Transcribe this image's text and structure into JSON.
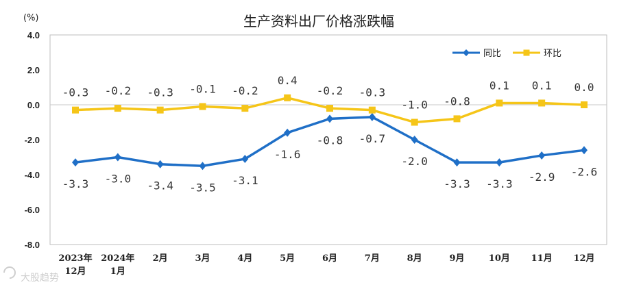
{
  "chart_data": {
    "type": "line",
    "title": "生产资料出厂价格涨跌幅",
    "unit_label": "(%)",
    "categories": [
      [
        "2023年",
        "12月"
      ],
      [
        "2024年",
        "1月"
      ],
      [
        "2月"
      ],
      [
        "3月"
      ],
      [
        "4月"
      ],
      [
        "5月"
      ],
      [
        "6月"
      ],
      [
        "7月"
      ],
      [
        "8月"
      ],
      [
        "9月"
      ],
      [
        "10月"
      ],
      [
        "11月"
      ],
      [
        "12月"
      ]
    ],
    "series": [
      {
        "name": "同比",
        "color": "#1f6fc7",
        "marker": "diamond",
        "values": [
          -3.3,
          -3.0,
          -3.4,
          -3.5,
          -3.1,
          -1.6,
          -0.8,
          -0.7,
          -2.0,
          -3.3,
          -3.3,
          -2.9,
          -2.6
        ],
        "labels": [
          "-3.3",
          "-3.0",
          "-3.4",
          "-3.5",
          "-3.1",
          "-1.6",
          "-0.8",
          "-0.7",
          "-2.0",
          "-3.3",
          "-3.3",
          "-2.9",
          "-2.6"
        ],
        "label_pos": [
          "below",
          "below",
          "below",
          "below",
          "below",
          "below",
          "below",
          "below",
          "below",
          "below",
          "below",
          "below",
          "below"
        ]
      },
      {
        "name": "环比",
        "color": "#f5c518",
        "marker": "square",
        "values": [
          -0.3,
          -0.2,
          -0.3,
          -0.1,
          -0.2,
          0.4,
          -0.2,
          -0.3,
          -1.0,
          -0.8,
          0.1,
          0.1,
          0.0
        ],
        "labels": [
          "-0.3",
          "-0.2",
          "-0.3",
          "-0.1",
          "-0.2",
          "0.4",
          "-0.2",
          "-0.3",
          "-1.0",
          "-0.8",
          "0.1",
          "0.1",
          "0.0"
        ],
        "label_pos": [
          "above",
          "above",
          "above",
          "above",
          "above",
          "above",
          "above",
          "above",
          "above",
          "above",
          "above",
          "above",
          "above"
        ]
      }
    ],
    "yticks": [
      "4.0",
      "2.0",
      "0.0",
      "-2.0",
      "-4.0",
      "-6.0",
      "-8.0"
    ],
    "ylim": [
      -8,
      4
    ],
    "ytick_step": 2,
    "legend_position": "top-right",
    "grid": false
  },
  "watermark": "大股趋势",
  "watermark_icon": "logo-icon"
}
